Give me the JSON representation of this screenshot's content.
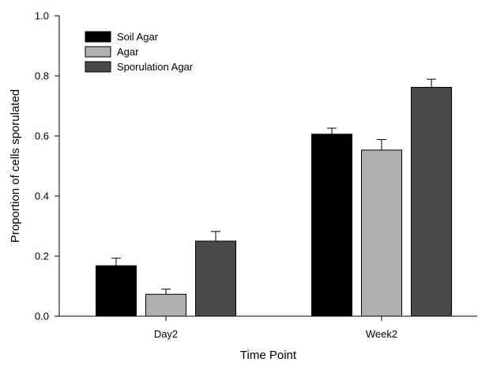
{
  "chart_data": {
    "type": "bar",
    "categories": [
      "Day2",
      "Week2"
    ],
    "series": [
      {
        "name": "Soil Agar",
        "values": [
          0.168,
          0.606
        ],
        "errors": [
          0.025,
          0.02
        ],
        "color": "#000000"
      },
      {
        "name": "Agar",
        "values": [
          0.073,
          0.553
        ],
        "errors": [
          0.017,
          0.035
        ],
        "color": "#b0b0b0"
      },
      {
        "name": "Sporulation Agar",
        "values": [
          0.25,
          0.762
        ],
        "errors": [
          0.032,
          0.027
        ],
        "color": "#4a4a4a"
      }
    ],
    "title": "",
    "xlabel": "Time Point",
    "ylabel": "Proportion of cells sporulated",
    "ylim": [
      0,
      1.0
    ],
    "yticks": [
      0.0,
      0.2,
      0.4,
      0.6,
      0.8,
      1.0
    ],
    "ytick_labels": [
      "0.0",
      "0.2",
      "0.4",
      "0.6",
      "0.8",
      "1.0"
    ],
    "error_bars": "upper",
    "legend_position": "top-left",
    "grid": false
  }
}
